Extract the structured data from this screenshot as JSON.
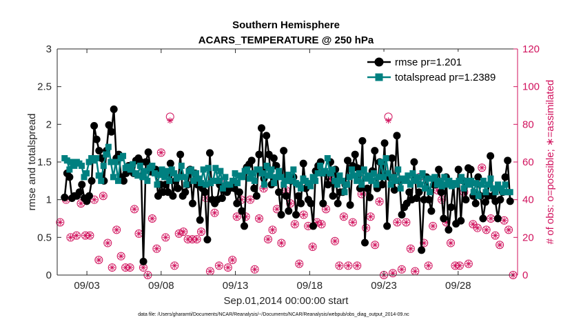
{
  "chart_data": {
    "type": "line",
    "title": "Southern Hemisphere",
    "subtitle": "ACARS_TEMPERATURE @ 250 hPa",
    "xlabel": "Sep.01,2014 00:00:00 start",
    "ylabel": "rmse and totalspread",
    "y2label": "# of obs: o=possible; ∗=assimilated",
    "footnote": "data file: /Users/gharamti/Documents/NCAR/Reanalysis/~/Documents/NCAR/Reanalysis/webpub/obs_diag_output_2014-09.nc",
    "x_start": "2014-09-01",
    "xlim": [
      "2014-09-01",
      "2014-10-02"
    ],
    "x_ticks": [
      "09/03",
      "09/08",
      "09/13",
      "09/18",
      "09/23",
      "09/28"
    ],
    "ylim": [
      0,
      3
    ],
    "y_ticks": [
      "0",
      "0.5",
      "1",
      "1.5",
      "2",
      "2.5",
      "3"
    ],
    "y2lim": [
      0,
      120
    ],
    "y2_ticks": [
      "0",
      "20",
      "40",
      "60",
      "80",
      "100",
      "120"
    ],
    "grid": false,
    "legend_position": "top-right",
    "colors": {
      "rmse": "#000000",
      "spread": "#008080",
      "obs": "#d1125d",
      "axis": "#262626"
    },
    "series": [
      {
        "name": "rmse pr=1.201",
        "axis": "left",
        "values": [
          1.03,
          1.35,
          1.3,
          1.02,
          1.05,
          1.05,
          1.1,
          1.2,
          1.02,
          0.98,
          1.05,
          1.25,
          1.98,
          1.8,
          1.65,
          1.55,
          1.25,
          1.65,
          1.99,
          1.9,
          2.2,
          1.55,
          1.6,
          1.3,
          1.25,
          1.35,
          1.45,
          1.45,
          1.35,
          1.52,
          1.55,
          1.5,
          0.18,
          1.5,
          1.63,
          1.37,
          1.4,
          1.4,
          1.05,
          1.2,
          1.1,
          1.2,
          1.1,
          1.48,
          1.05,
          1.25,
          1.15,
          1.6,
          1.05,
          1.1,
          1.2,
          1.4,
          0.95,
          1.35,
          1.2,
          0.73,
          1.15,
          1.1,
          0.47,
          1.62,
          1.0,
          0.95,
          1.0,
          1.2,
          1.02,
          1.12,
          1.1,
          1.15,
          1.2,
          1.15,
          0.95,
          1.1,
          0.85,
          0.65,
          1.43,
          1.47,
          1.52,
          1.15,
          1.05,
          1.6,
          1.95,
          1.28,
          1.85,
          1.6,
          1.2,
          1.55,
          1.45,
          1.1,
          0.8,
          1.65,
          1.05,
          0.85,
          1.25,
          1.3,
          0.8,
          1.05,
          0.95,
          1.48,
          1.15,
          1.0,
          0.95,
          0.65,
          1.38,
          1.45,
          1.5,
          0.95,
          1.35,
          1.2,
          1.5,
          1.05,
          1.4,
          0.95,
          1.1,
          1.1,
          1.2,
          1.52,
          0.93,
          1.45,
          1.6,
          1.42,
          1.15,
          1.78,
          0.43,
          1.15,
          1.03,
          1.38,
          1.65,
          1.15,
          1.5,
          1.2,
          1.75,
          0.65,
          1.3,
          1.55,
          1.13,
          1.85,
          1.25,
          0.8,
          0.9,
          0.95,
          1.1,
          1.0,
          1.5,
          1.02,
          1.1,
          0.33,
          1.0,
          1.3,
          1.0,
          0.85,
          1.2,
          1.2,
          1.4,
          1.1,
          0.75,
          1.3,
          0.6,
          0.9,
          1.2,
          0.68,
          1.4,
          0.72,
          1.25,
          1.0,
          1.42,
          1.4,
          1.05,
          0.95,
          1.3,
          1.05,
          0.75,
          0.97,
          1.05,
          1.58,
          1.05,
          0.98,
          0.75,
          1.0,
          1.1,
          1.3,
          1.52,
          0.98
        ]
      },
      {
        "name": "totalspread pr=1.2389",
        "axis": "left",
        "values": [
          1.55,
          1.52,
          1.4,
          1.5,
          1.45,
          1.5,
          1.48,
          1.45,
          1.3,
          1.35,
          1.5,
          1.55,
          1.52,
          1.55,
          1.32,
          1.25,
          1.45,
          1.6,
          1.7,
          1.5,
          1.3,
          1.5,
          1.25,
          1.55,
          1.58,
          1.42,
          1.44,
          1.4,
          1.47,
          1.35,
          1.32,
          1.45,
          1.3,
          1.38,
          1.25,
          1.42,
          1.45,
          1.35,
          1.2,
          1.33,
          1.4,
          1.3,
          1.38,
          1.25,
          1.4,
          1.35,
          1.28,
          1.3,
          1.45,
          1.3,
          1.2,
          1.38,
          1.4,
          1.25,
          1.35,
          1.28,
          1.22,
          1.4,
          1.2,
          1.42,
          1.22,
          1.25,
          1.42,
          1.25,
          1.38,
          1.15,
          1.3,
          1.2,
          1.2,
          1.25,
          1.35,
          1.22,
          1.32,
          1.3,
          1.38,
          1.4,
          1.28,
          1.35,
          1.25,
          1.4,
          1.4,
          1.35,
          1.2,
          1.45,
          1.32,
          1.4,
          1.22,
          1.3,
          1.38,
          1.3,
          1.2,
          1.25,
          1.33,
          1.25,
          1.4,
          1.22,
          1.2,
          1.15,
          1.28,
          1.25,
          1.22,
          1.18,
          1.3,
          1.25,
          1.35,
          1.45,
          1.35,
          1.38,
          1.55,
          1.35,
          1.4,
          1.25,
          1.2,
          1.32,
          1.25,
          1.1,
          1.2,
          1.3,
          1.4,
          1.32,
          1.25,
          1.35,
          1.2,
          1.4,
          1.28,
          1.32,
          1.25,
          1.35,
          1.2,
          1.3,
          1.5,
          1.3,
          1.55,
          1.35,
          1.2,
          1.3,
          1.25,
          1.4,
          1.15,
          1.28,
          1.25,
          1.32,
          1.2,
          1.35,
          1.25,
          1.3,
          1.2,
          1.35,
          1.15,
          1.28,
          1.1,
          1.28,
          1.3,
          1.2,
          1.25,
          1.18,
          1.3,
          1.2,
          1.25,
          1.18,
          1.22,
          1.2,
          1.25,
          1.3,
          1.15,
          1.25,
          1.2,
          1.25,
          1.1,
          1.22,
          1.05,
          1.2,
          1.25,
          1.1,
          1.2,
          1.28,
          1.15,
          1.1,
          1.2,
          1.15,
          1.1,
          1.2,
          1.1,
          1.1
        ]
      }
    ],
    "obs_possible": {
      "name": "possible",
      "axis": "right",
      "x_days": [
        0.2,
        0.6,
        0.9,
        1.3,
        1.6,
        1.9,
        2.2,
        2.5,
        2.8,
        3.1,
        3.4,
        3.7,
        4.0,
        4.3,
        4.6,
        4.9,
        5.2,
        5.5,
        5.8,
        6.1,
        6.4,
        6.7,
        7.0,
        7.3,
        7.6,
        7.9,
        8.2,
        8.5,
        8.8,
        9.1,
        9.4,
        9.7,
        10.0,
        10.3,
        10.6,
        10.9,
        11.2,
        11.5,
        11.8,
        12.1,
        12.4,
        12.7,
        13.0,
        13.3,
        13.6,
        13.9,
        14.2,
        14.5,
        14.8,
        15.1,
        15.4,
        15.7,
        16.0,
        16.3,
        16.6,
        16.9,
        17.2,
        17.5,
        17.8,
        18.1,
        18.4,
        18.7,
        19.0,
        19.3,
        19.6,
        19.9,
        20.2,
        20.5,
        20.8,
        21.1,
        21.4,
        21.7,
        22.0,
        22.3,
        22.6,
        22.9,
        23.2,
        23.5,
        23.8,
        24.1,
        24.4,
        24.7,
        25.0,
        25.3,
        25.6,
        25.9,
        26.2,
        26.5,
        26.8,
        27.1,
        27.4,
        27.7,
        28.0,
        28.3,
        28.6,
        28.9,
        29.2,
        29.5,
        29.8,
        30.1,
        30.4,
        30.7
      ],
      "values": [
        28,
        40,
        20,
        21,
        38,
        21,
        21,
        40,
        8,
        42,
        17,
        4,
        24,
        10,
        4,
        4,
        35,
        22,
        4,
        0,
        30,
        14,
        65,
        20,
        84,
        5,
        22,
        23,
        19,
        19,
        19,
        23,
        41,
        2,
        33,
        5,
        48,
        4,
        8,
        31,
        40,
        31,
        40,
        3,
        30,
        46,
        19,
        24,
        35,
        17,
        45,
        38,
        27,
        6,
        32,
        26,
        15,
        28,
        27,
        35,
        51,
        18,
        5,
        31,
        5,
        28,
        5,
        43,
        25,
        31,
        16,
        39,
        0,
        84,
        1,
        28,
        3,
        28,
        14,
        2,
        52,
        17,
        5,
        26,
        45,
        40,
        28,
        17,
        5,
        5,
        44,
        6,
        27,
        25,
        57,
        24,
        30,
        21,
        16,
        29,
        24,
        0
      ]
    },
    "obs_assimilated": {
      "name": "assimilated",
      "axis": "right",
      "values": [
        28,
        40,
        20,
        21,
        38,
        21,
        21,
        40,
        8,
        42,
        17,
        4,
        24,
        10,
        4,
        4,
        35,
        22,
        4,
        0,
        30,
        14,
        65,
        20,
        82,
        5,
        22,
        23,
        19,
        19,
        19,
        23,
        41,
        2,
        33,
        5,
        48,
        4,
        8,
        31,
        40,
        31,
        40,
        3,
        30,
        46,
        19,
        24,
        35,
        17,
        45,
        38,
        27,
        6,
        32,
        26,
        15,
        28,
        27,
        35,
        51,
        18,
        5,
        31,
        5,
        28,
        5,
        43,
        25,
        31,
        16,
        39,
        0,
        82,
        1,
        28,
        3,
        28,
        14,
        2,
        52,
        17,
        5,
        26,
        45,
        40,
        28,
        17,
        5,
        5,
        44,
        6,
        27,
        25,
        57,
        24,
        30,
        21,
        16,
        29,
        24,
        0
      ]
    }
  }
}
